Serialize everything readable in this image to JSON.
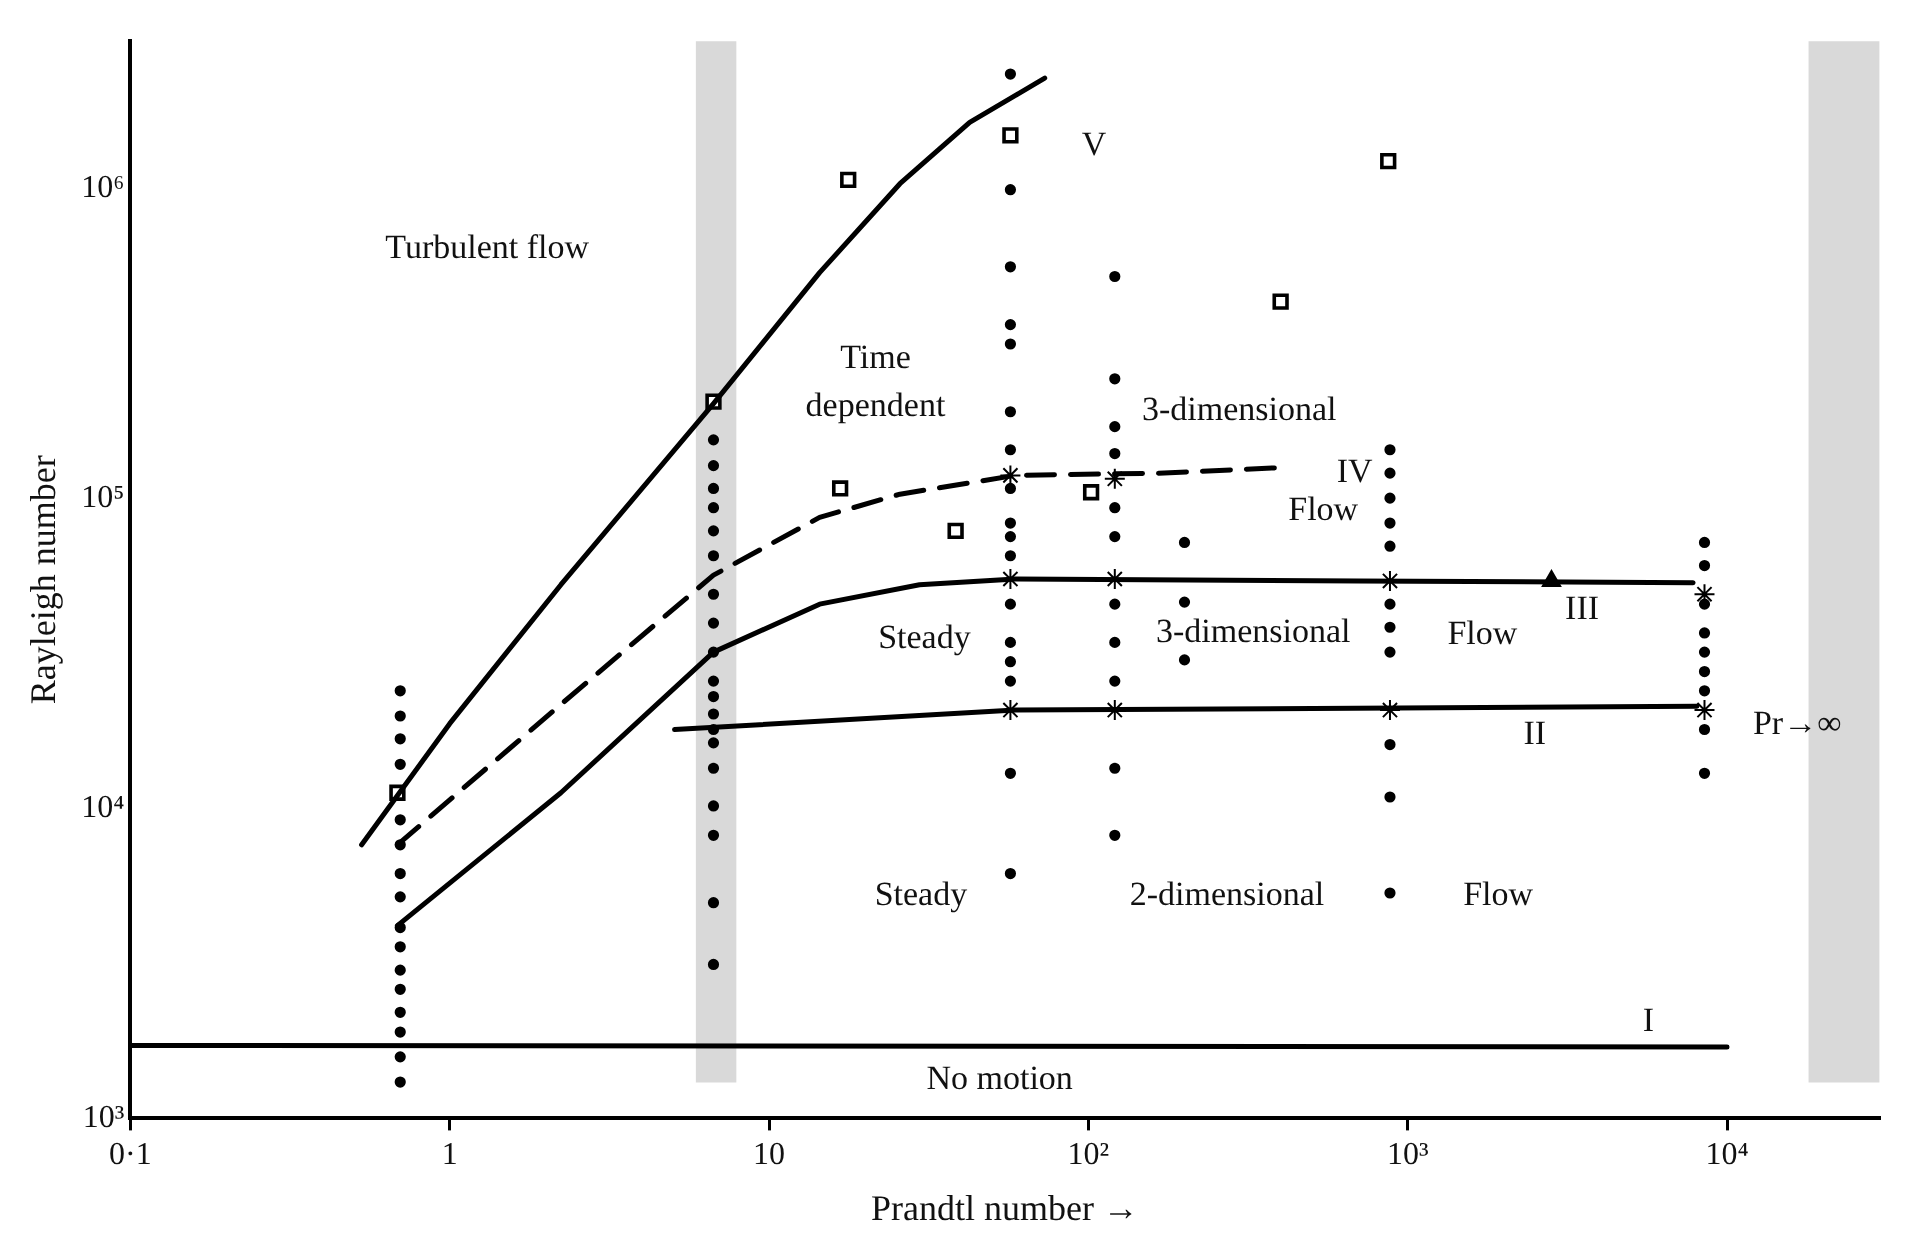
{
  "chart_data": {
    "type": "line",
    "xlabel": "Prandtl number →",
    "ylabel": "Rayleigh number",
    "log": "xy",
    "grid": false,
    "xlim": [
      0.1,
      30000
    ],
    "ylim": [
      1000,
      3000000
    ],
    "xticks": [
      {
        "value": 0.1,
        "label": "0·1"
      },
      1,
      10,
      {
        "value": 100,
        "label": "10²"
      },
      {
        "value": 1000,
        "label": "10³"
      },
      {
        "value": 10000,
        "label": "10⁴"
      }
    ],
    "yticks": [
      {
        "value": 1000,
        "label": "10³"
      },
      {
        "value": 10000,
        "label": "10⁴"
      },
      {
        "value": 100000,
        "label": "10⁵"
      },
      {
        "value": 1000000,
        "label": "10⁶"
      }
    ],
    "bands": [
      {
        "axis": "x",
        "from": 5.9,
        "to": 7.9,
        "color": "#d9d9d9"
      },
      {
        "axis": "x",
        "from": 18000,
        "to": 30000,
        "color": "#d9d9d9"
      }
    ],
    "series": [
      {
        "type": "line",
        "color": "#000000",
        "line_style": "solid",
        "marker": "none",
        "x": [
          0.53,
          1.0,
          2.23,
          6.7,
          14.4,
          25.7,
          42.5,
          73
        ],
        "values": [
          7640,
          18800,
          52800,
          203000,
          537000,
          1040000,
          1640000,
          2280000
        ]
      },
      {
        "type": "line",
        "color": "#000000",
        "line_style": "dashed",
        "marker": "none",
        "x": [
          0.686,
          2.23,
          6.7,
          14.4,
          25.7,
          59,
          166,
          394
        ],
        "values": [
          7640,
          21700,
          56700,
          87100,
          103500,
          119000,
          121000,
          126000
        ]
      },
      {
        "type": "line",
        "color": "#000000",
        "line_style": "solid",
        "marker": "none",
        "x": [
          0.686,
          2.23,
          6.7,
          14.4,
          29.6,
          59,
          700,
          7830
        ],
        "values": [
          4190,
          11250,
          32000,
          45700,
          52800,
          55100,
          54300,
          53600
        ]
      },
      {
        "type": "line",
        "color": "#000000",
        "line_style": "solid",
        "marker": "none",
        "x": [
          5.06,
          59,
          8050
        ],
        "values": [
          18000,
          20800,
          21400
        ]
      },
      {
        "type": "line",
        "color": "#000000",
        "line_style": "solid",
        "marker": "none",
        "x": [
          0.1,
          10000
        ],
        "values": [
          1720,
          1700
        ]
      },
      {
        "type": "scatter",
        "color": "#000000",
        "marker": "circle",
        "x": [
          0.7,
          0.7,
          0.7,
          0.7,
          0.7,
          0.7,
          0.7,
          0.7,
          0.7,
          0.7,
          0.7,
          0.7,
          0.7,
          0.7,
          0.7,
          0.7,
          6.7,
          6.7,
          6.7,
          6.7,
          6.7,
          6.7,
          6.7,
          6.7,
          6.7,
          6.7,
          6.7,
          6.7,
          6.7,
          6.7,
          6.7,
          6.7,
          6.7,
          6.7,
          6.7,
          57,
          57,
          57,
          57,
          57,
          57,
          57,
          57,
          57,
          57,
          57,
          57,
          57,
          57,
          57,
          57,
          57,
          121,
          121,
          121,
          121,
          121,
          121,
          121,
          121,
          121,
          121,
          121,
          200,
          200,
          200,
          880,
          880,
          880,
          880,
          880,
          880,
          880,
          880,
          880,
          880,
          880,
          8500,
          8500,
          8500,
          8500,
          8500,
          8500,
          8500,
          8500,
          8500
        ],
        "values": [
          24000,
          19900,
          16800,
          13900,
          9200,
          7640,
          6170,
          5190,
          4130,
          3580,
          3010,
          2610,
          2200,
          1900,
          1580,
          1310,
          155000,
          128000,
          108000,
          93600,
          78800,
          65500,
          49200,
          39700,
          32000,
          25800,
          23000,
          20200,
          18000,
          16300,
          13500,
          10200,
          8200,
          4970,
          3140,
          2350000,
          995000,
          561000,
          365000,
          316000,
          191000,
          144000,
          108000,
          83500,
          75500,
          65500,
          45700,
          34400,
          29800,
          25800,
          13000,
          6170,
          522000,
          244000,
          171000,
          140000,
          93600,
          75500,
          45700,
          34400,
          25800,
          13500,
          8200,
          72300,
          46400,
          30200,
          144000,
          121000,
          100500,
          83500,
          70300,
          45700,
          38500,
          32000,
          16100,
          10900,
          5340,
          72300,
          60900,
          45700,
          36900,
          32000,
          27700,
          24000,
          18000,
          13000
        ]
      },
      {
        "type": "scatter",
        "color": "#000000",
        "marker": "square",
        "x": [
          0.686,
          6.7,
          17.7,
          16.7,
          38.4,
          102,
          57,
          400,
          869
        ],
        "values": [
          11250,
          206000,
          1070000,
          108000,
          78800,
          105000,
          1490000,
          433000,
          1230000
        ]
      },
      {
        "type": "scatter",
        "color": "#000000",
        "marker": "cross",
        "x": [
          57,
          121,
          57,
          121,
          880,
          8500,
          57,
          121,
          880,
          8500
        ],
        "values": [
          119000,
          116000,
          55100,
          55100,
          54300,
          49200,
          20800,
          20800,
          20800,
          20800
        ]
      },
      {
        "type": "scatter",
        "color": "#000000",
        "marker": "triangle",
        "x": [
          2820
        ],
        "values": [
          54300
        ]
      }
    ],
    "annotations": [
      "Turbulent flow",
      "Time\ndependent",
      "V",
      "3-dimensional",
      "IV",
      "Flow",
      "Steady",
      "3-dimensional",
      "Flow",
      "III",
      "II",
      "Pr→∞",
      "Steady",
      "2-dimensional",
      "Flow",
      "I",
      "No motion"
    ]
  }
}
